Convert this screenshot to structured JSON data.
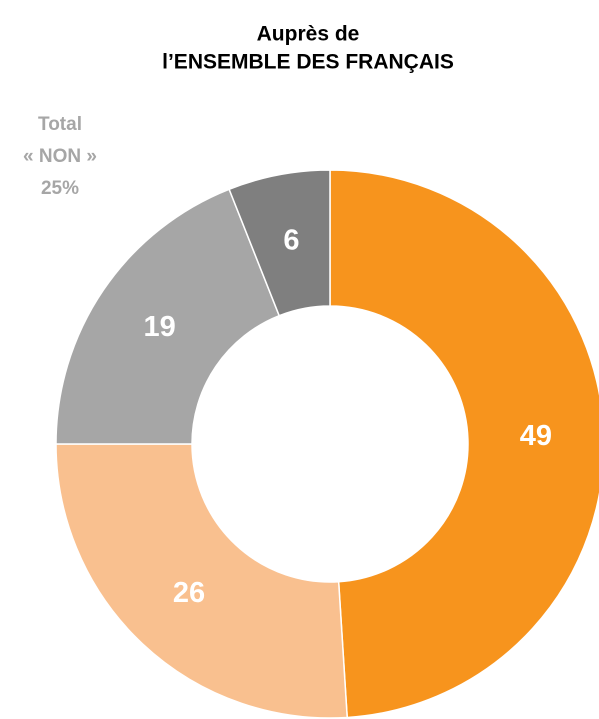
{
  "chart_data": {
    "type": "donut",
    "title": [
      "Auprès de",
      "l’ENSEMBLE DES FRANÇAIS"
    ],
    "annotation": [
      "Total",
      "« NON »",
      "25%"
    ],
    "categories": [
      null,
      null,
      null,
      null
    ],
    "values": [
      49,
      26,
      19,
      6
    ],
    "colors": [
      "#f7941d",
      "#f9c08f",
      "#a6a6a6",
      "#7f7f7f"
    ]
  }
}
